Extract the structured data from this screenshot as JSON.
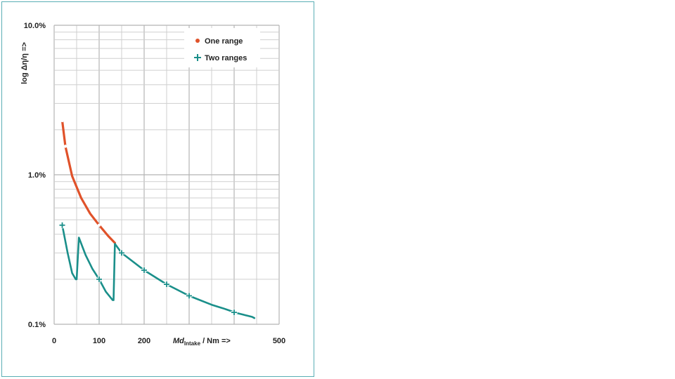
{
  "chart_data": {
    "type": "line",
    "ylabel": "log Δη/η =>",
    "xlabel_main": "Md",
    "xlabel_sub": "Intake",
    "xlabel_tail": " / Nm =>",
    "xlim": [
      0,
      500
    ],
    "ylim": [
      0.1,
      10
    ],
    "yscale": "log",
    "grid": true,
    "legend_position": "top-right",
    "x_ticks": [
      {
        "value": 0,
        "label": "0"
      },
      {
        "value": 100,
        "label": "100"
      },
      {
        "value": 200,
        "label": "200"
      },
      {
        "value": 500,
        "label": "500"
      }
    ],
    "y_ticks": [
      {
        "value": 0.1,
        "label": "0.1%"
      },
      {
        "value": 1,
        "label": "1.0%"
      },
      {
        "value": 10,
        "label": "10.0%"
      }
    ],
    "series": [
      {
        "name": "One range",
        "color": "#e0522a",
        "marker": "dot",
        "x": [
          18,
          25,
          40,
          60,
          80,
          100,
          120,
          135
        ],
        "y": [
          2.3,
          1.55,
          0.98,
          0.7,
          0.55,
          0.46,
          0.39,
          0.35
        ],
        "marker_x": [
          18,
          25,
          100
        ]
      },
      {
        "name": "Two ranges",
        "color": "#1a8f8a",
        "marker": "plus",
        "x": [
          18,
          30,
          40,
          48,
          50,
          55,
          70,
          85,
          100,
          115,
          130,
          132,
          135,
          150,
          200,
          250,
          300,
          350,
          375,
          385,
          395,
          400,
          420,
          425,
          430,
          440,
          445
        ],
        "y": [
          0.46,
          0.3,
          0.22,
          0.2,
          0.2,
          0.38,
          0.29,
          0.235,
          0.2,
          0.165,
          0.145,
          0.145,
          0.345,
          0.3,
          0.23,
          0.185,
          0.155,
          0.135,
          0.128,
          0.125,
          0.122,
          0.12,
          0.116,
          0.115,
          0.114,
          0.112,
          0.11
        ],
        "marker_x": [
          18,
          100,
          150,
          200,
          250,
          300,
          400
        ]
      }
    ]
  }
}
